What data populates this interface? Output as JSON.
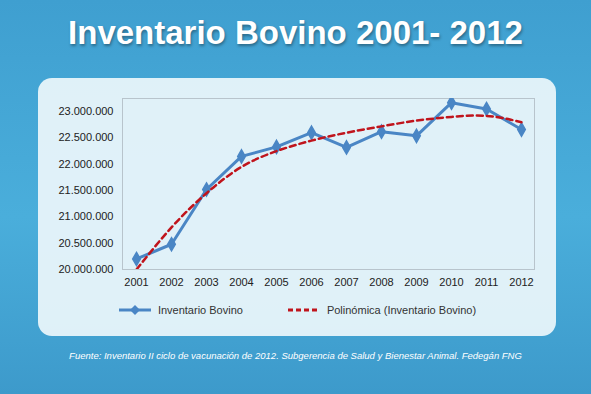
{
  "chart_data": {
    "type": "line",
    "title": "Inventario Bovino 2001- 2012",
    "caption": "Fuente: Inventario II ciclo de vacunación de 2012. Subgerencia de Salud y Bienestar Animal. Fedegán FNG",
    "categories": [
      "2001",
      "2002",
      "2003",
      "2004",
      "2005",
      "2006",
      "2007",
      "2008",
      "2009",
      "2010",
      "2011",
      "2012"
    ],
    "series": [
      {
        "name": "Inventario Bovino",
        "color": "#4a86c5",
        "marker": "diamond",
        "line_style": "solid",
        "values": [
          20200000,
          20480000,
          21520000,
          22150000,
          22330000,
          22600000,
          22320000,
          22620000,
          22540000,
          23170000,
          23050000,
          22660000
        ]
      },
      {
        "name": "Polinómica (Inventario Bovino)",
        "color": "#c0141c",
        "line_style": "dashed",
        "values": [
          20000000,
          20800000,
          21450000,
          21950000,
          22250000,
          22450000,
          22600000,
          22720000,
          22830000,
          22900000,
          22920000,
          22800000
        ]
      }
    ],
    "ylim": [
      20000000,
      23250000
    ],
    "yticks": [
      {
        "value": 20000000,
        "label": "20.000.000"
      },
      {
        "value": 20500000,
        "label": "20.500.000"
      },
      {
        "value": 21000000,
        "label": "21.000.000"
      },
      {
        "value": 21500000,
        "label": "21.500.000"
      },
      {
        "value": 22000000,
        "label": "22.000.000"
      },
      {
        "value": 22500000,
        "label": "22.500.000"
      },
      {
        "value": 23000000,
        "label": "23.000.000"
      }
    ],
    "grid": false,
    "legend": "bottom"
  }
}
